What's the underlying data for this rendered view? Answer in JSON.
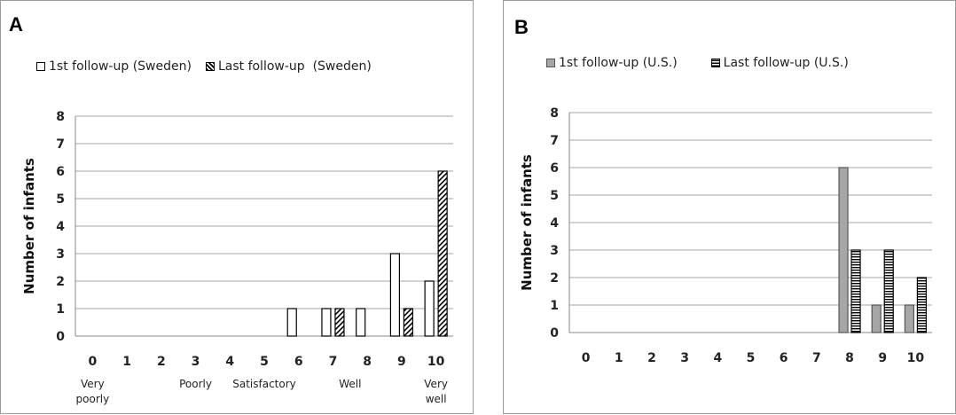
{
  "chart_data": [
    {
      "panel": "A",
      "type": "bar",
      "ylabel": "Number of infants",
      "categories": [
        "0",
        "1",
        "2",
        "3",
        "4",
        "5",
        "6",
        "7",
        "8",
        "9",
        "10"
      ],
      "category_labels": [
        {
          "at": "0",
          "text": "Very poorly"
        },
        {
          "at": "3",
          "text": "Poorly"
        },
        {
          "at": "5",
          "text": "Satisfactory"
        },
        {
          "at": "7.5",
          "text": "Well"
        },
        {
          "at": "10",
          "text": "Very well"
        }
      ],
      "ylim": [
        0,
        8
      ],
      "yticks": [
        0,
        1,
        2,
        3,
        4,
        5,
        6,
        7,
        8
      ],
      "grid": true,
      "legend_position": "top",
      "series": [
        {
          "name": "1st follow-up (Sweden)",
          "style": "white",
          "values": [
            0,
            0,
            0,
            0,
            0,
            0,
            1,
            1,
            1,
            3,
            2
          ]
        },
        {
          "name": "Last follow-up  (Sweden)",
          "style": "diagonal",
          "values": [
            0,
            0,
            0,
            0,
            0,
            0,
            0,
            1,
            0,
            1,
            6
          ]
        }
      ]
    },
    {
      "panel": "B",
      "type": "bar",
      "ylabel": "Number of infants",
      "categories": [
        "0",
        "1",
        "2",
        "3",
        "4",
        "5",
        "6",
        "7",
        "8",
        "9",
        "10"
      ],
      "ylim": [
        0,
        8
      ],
      "yticks": [
        0,
        1,
        2,
        3,
        4,
        5,
        6,
        7,
        8
      ],
      "grid": true,
      "legend_position": "top",
      "series": [
        {
          "name": "1st follow-up (U.S.)",
          "style": "gray",
          "values": [
            0,
            0,
            0,
            0,
            0,
            0,
            0,
            0,
            6,
            1,
            1
          ]
        },
        {
          "name": "Last follow-up (U.S.)",
          "style": "horizontal",
          "values": [
            0,
            0,
            0,
            0,
            0,
            0,
            0,
            0,
            3,
            3,
            2
          ]
        }
      ]
    }
  ]
}
